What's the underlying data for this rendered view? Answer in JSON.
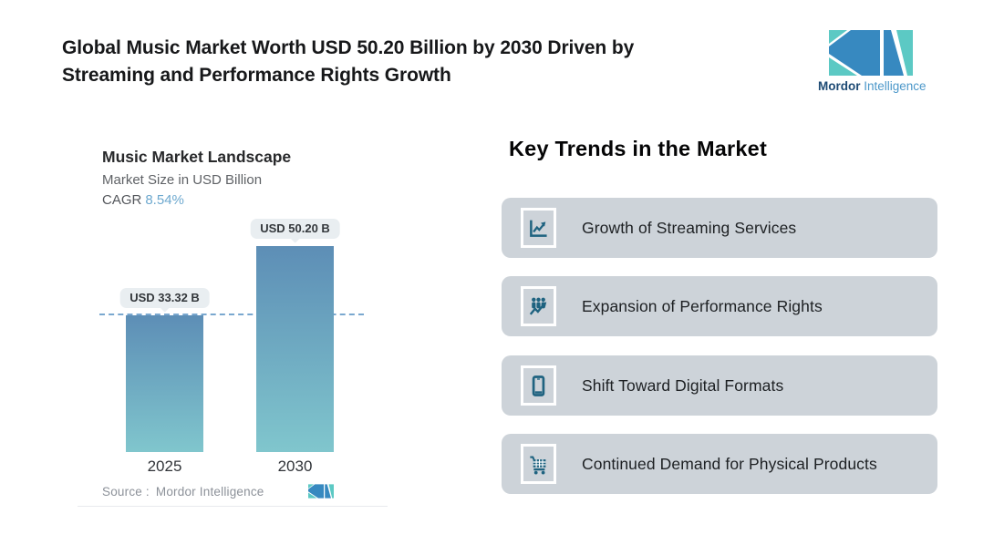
{
  "header": {
    "title_line1": "Global Music Market Worth USD 50.20 Billion by 2030 Driven by",
    "title_line2": "Streaming and Performance Rights Growth"
  },
  "brand": {
    "name_primary": "Mordor",
    "name_secondary": "Intelligence"
  },
  "chart": {
    "title": "Music Market Landscape",
    "subtitle": "Market Size in USD Billion",
    "cagr_label": "CAGR",
    "cagr_value": "8.54%",
    "source_label": "Source :",
    "source_value": "Mordor Intelligence"
  },
  "chart_data": {
    "type": "bar",
    "title": "Music Market Landscape",
    "ylabel": "Market Size in USD Billion",
    "categories": [
      "2025",
      "2030"
    ],
    "values": [
      33.32,
      50.2
    ],
    "bar_labels": [
      "USD 33.32 B",
      "USD 50.20 B"
    ],
    "cagr_pct": 8.54,
    "ylim": [
      0,
      50.2
    ],
    "reference_line": 33.32,
    "grid": false,
    "legend": false
  },
  "trends": {
    "heading": "Key Trends in the Market",
    "items": [
      {
        "label": "Growth of Streaming Services",
        "icon": "line-chart-growth-icon"
      },
      {
        "label": "Expansion of Performance Rights",
        "icon": "audience-growth-icon"
      },
      {
        "label": "Shift Toward Digital Formats",
        "icon": "smartphone-icon"
      },
      {
        "label": "Continued Demand for Physical Products",
        "icon": "shopping-cart-icon"
      }
    ]
  },
  "colors": {
    "bar_gradient_top": "#5d8eb6",
    "bar_gradient_bottom": "#80c6cd",
    "dashed_line": "#7aa8cf",
    "cagr_value": "#6ea9cf",
    "card_background": "#cdd3d9",
    "trend_icon": "#1f6380",
    "brand_blue": "#3789c0",
    "brand_teal": "#5cc9c4"
  }
}
